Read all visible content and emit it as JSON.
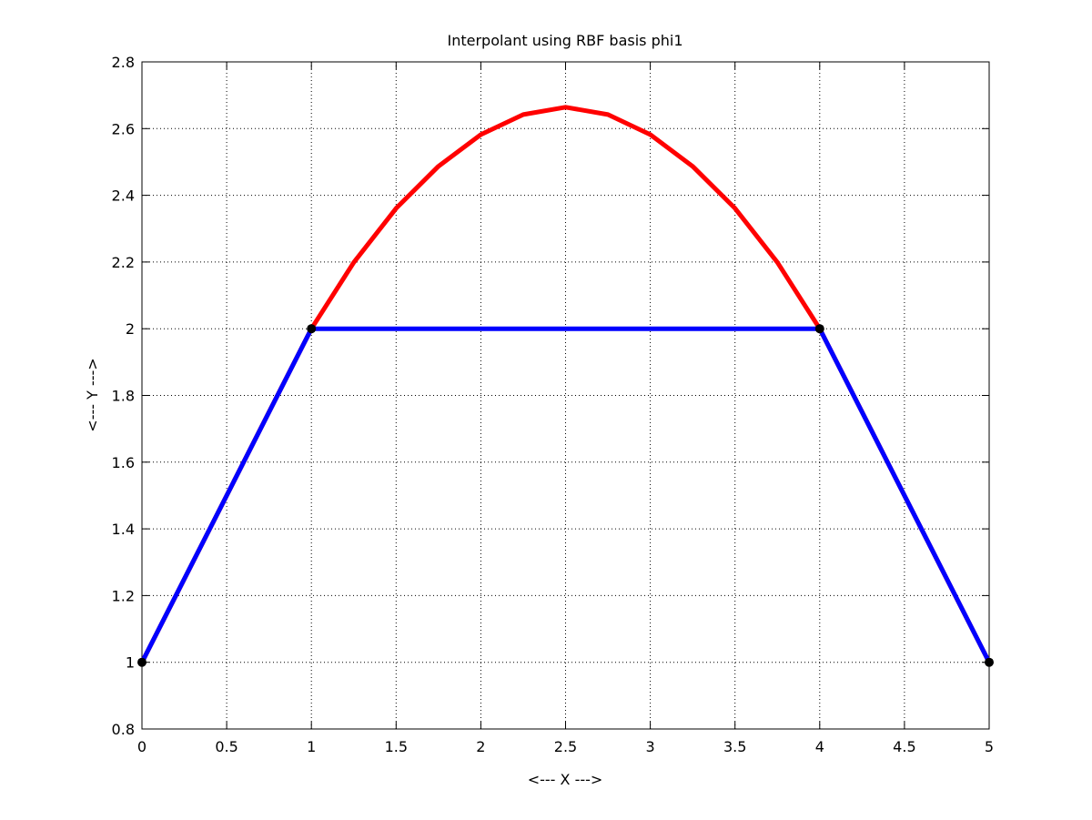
{
  "chart_data": {
    "type": "line",
    "title": "Interpolant using RBF basis phi1",
    "xlabel": "<--- X --->",
    "ylabel": "<--- Y --->",
    "xlim": [
      0,
      5
    ],
    "ylim": [
      0.8,
      2.8
    ],
    "xticks": [
      0,
      0.5,
      1,
      1.5,
      2,
      2.5,
      3,
      3.5,
      4,
      4.5,
      5
    ],
    "yticks": [
      0.8,
      1,
      1.2,
      1.4,
      1.6,
      1.8,
      2,
      2.2,
      2.4,
      2.6,
      2.8
    ],
    "xtick_labels": [
      "0",
      "0.5",
      "1",
      "1.5",
      "2",
      "2.5",
      "3",
      "3.5",
      "4",
      "4.5",
      "5"
    ],
    "ytick_labels": [
      "0.8",
      "1",
      "1.2",
      "1.4",
      "1.6",
      "1.8",
      "2",
      "2.2",
      "2.4",
      "2.6",
      "2.8"
    ],
    "grid": true,
    "legend": "none",
    "series": [
      {
        "color": "#ff0000",
        "x": [
          0,
          0.25,
          0.5,
          0.75,
          1,
          1.25,
          1.5,
          1.75,
          2,
          2.25,
          2.5,
          2.75,
          3,
          3.25,
          3.5,
          3.75,
          4,
          4.25,
          4.5,
          4.75,
          5
        ],
        "y": [
          1,
          1.25,
          1.5,
          1.75,
          2,
          2.199,
          2.361,
          2.487,
          2.582,
          2.642,
          2.664,
          2.642,
          2.582,
          2.487,
          2.361,
          2.199,
          2,
          1.75,
          1.5,
          1.25,
          1
        ]
      },
      {
        "color": "#0000ff",
        "x": [
          0,
          1,
          4,
          5
        ],
        "y": [
          1,
          2,
          2,
          1
        ]
      }
    ],
    "points": {
      "color": "#000000",
      "x": [
        0,
        1,
        4,
        5
      ],
      "y": [
        1,
        2,
        2,
        1
      ]
    }
  }
}
